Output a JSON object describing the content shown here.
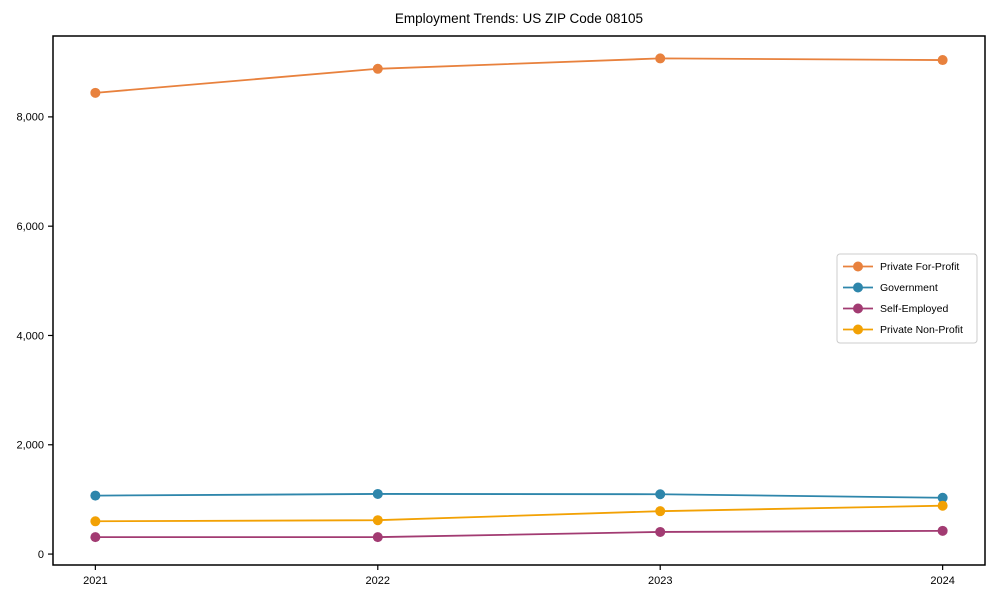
{
  "chart_data": {
    "type": "line",
    "title": "Employment Trends: US ZIP Code 08105",
    "xlabel": "",
    "ylabel": "",
    "x": [
      2021,
      2022,
      2023,
      2024
    ],
    "x_tick_labels": [
      "2021",
      "2022",
      "2023",
      "2024"
    ],
    "y_tick_values": [
      0,
      2000,
      4000,
      6000,
      8000
    ],
    "y_tick_labels": [
      "0",
      "2,000",
      "4,000",
      "6,000",
      "8,000"
    ],
    "xlim": [
      2020.85,
      2024.15
    ],
    "ylim": [
      -200,
      9480
    ],
    "grid": false,
    "legend_position": "center right",
    "series": [
      {
        "name": "Private For-Profit",
        "color": "#E8813D",
        "values": [
          8440,
          8880,
          9070,
          9040
        ]
      },
      {
        "name": "Government",
        "color": "#2E86AB",
        "values": [
          1070,
          1100,
          1095,
          1030
        ]
      },
      {
        "name": "Self-Employed",
        "color": "#A23B72",
        "values": [
          310,
          310,
          405,
          425
        ]
      },
      {
        "name": "Private Non-Profit",
        "color": "#F2A104",
        "values": [
          600,
          620,
          785,
          885
        ]
      }
    ],
    "style": {
      "spine_color": "#000000",
      "background": "#ffffff",
      "legend_border": "#cccccc",
      "marker": "circle"
    }
  }
}
